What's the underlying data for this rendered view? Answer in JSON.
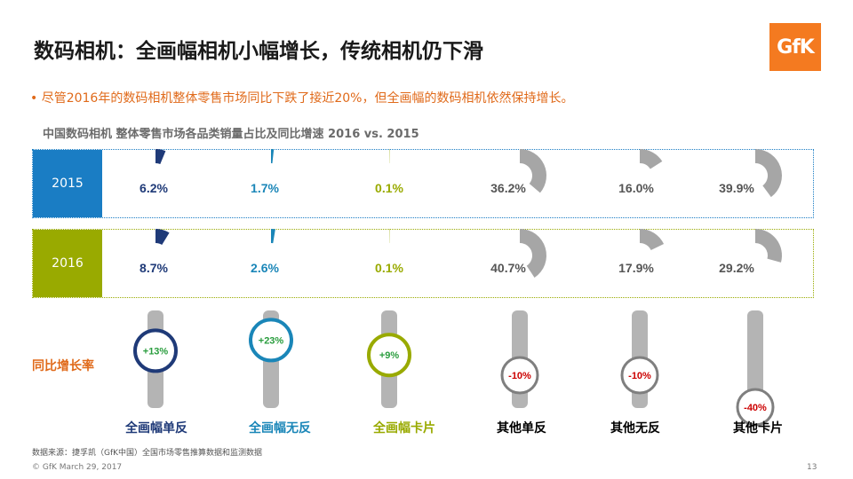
{
  "title": "数码相机：全画幅相机小幅增长，传统相机仍下滑",
  "logo_text": "GfK",
  "bullet": "• 尽管2016年的数码相机整体零售市场同比下跌了接近20%，但全画幅的数码相机依然保持增长。",
  "footer": {
    "source": "数据来源：捷孚凯（GfK中国）全国市场零售推算数据和监测数据",
    "copyright": "© GfK March 29, 2017",
    "page": "13"
  },
  "chart_data": {
    "type": "pie",
    "title": "中国数码相机 整体零售市场各品类销量占比及同比增速 2016 vs. 2015",
    "categories": [
      "全画幅单反",
      "全画幅无反",
      "全画幅卡片",
      "其他单反",
      "其他无反",
      "其他卡片"
    ],
    "category_colors": [
      "#1f3a78",
      "#1a86b8",
      "#99aa00",
      "#000000",
      "#000000",
      "#000000"
    ],
    "series": [
      {
        "name": "2015",
        "values": [
          6.2,
          1.7,
          0.1,
          36.2,
          16.0,
          39.9
        ],
        "labels": [
          "6.2%",
          "1.7%",
          "0.1%",
          "36.2%",
          "16.0%",
          "39.9%"
        ]
      },
      {
        "name": "2016",
        "values": [
          8.7,
          2.6,
          0.1,
          40.7,
          17.9,
          29.2
        ],
        "labels": [
          "8.7%",
          "2.6%",
          "0.1%",
          "40.7%",
          "17.9%",
          "29.2%"
        ]
      }
    ],
    "growth_label": "同比增长率",
    "growth": [
      13,
      23,
      9,
      -10,
      -10,
      -40
    ],
    "growth_labels": [
      "+13%",
      "+23%",
      "+9%",
      "-10%",
      "-10%",
      "-40%"
    ],
    "colors": {
      "row_2015": "#1a7dc4",
      "row_2016": "#99aa00",
      "full_frame_dslr": "#1f3a78",
      "full_frame_mirrorless": "#1a86b8",
      "full_frame_compact": "#99aa00",
      "others": "#a6a6a6",
      "negative": "#cc0000",
      "positive": "#2a9d3e"
    }
  }
}
